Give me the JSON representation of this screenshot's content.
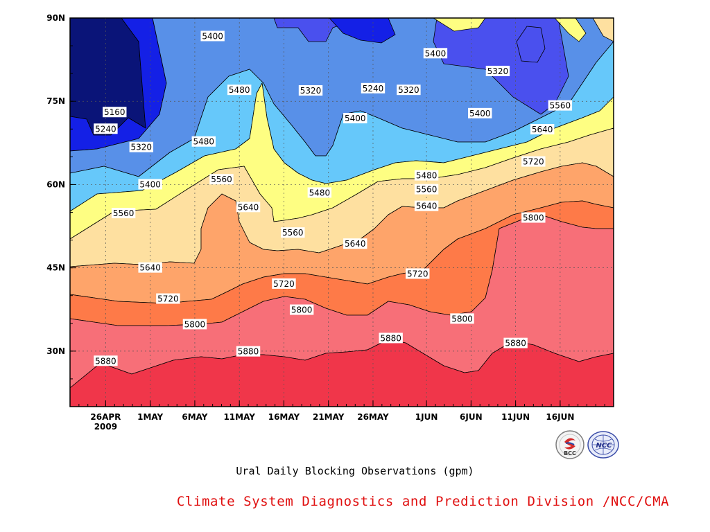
{
  "chart_data": {
    "type": "heatmap",
    "subtype": "filled-contour",
    "title": "",
    "caption": "Ural Daily Blocking Observations (gpm)",
    "credit": "Climate System Diagnostics and Prediction Division /NCC/CMA",
    "xlabel": "",
    "ylabel": "",
    "x_range": [
      "2009-04-22",
      "2009-06-22"
    ],
    "y_range": [
      20,
      90
    ],
    "x_ticks": [
      {
        "label": "26APR",
        "sublabel": "2009",
        "date": "2009-04-26"
      },
      {
        "label": "1MAY",
        "date": "2009-05-01"
      },
      {
        "label": "6MAY",
        "date": "2009-05-06"
      },
      {
        "label": "11MAY",
        "date": "2009-05-11"
      },
      {
        "label": "16MAY",
        "date": "2009-05-16"
      },
      {
        "label": "21MAY",
        "date": "2009-05-21"
      },
      {
        "label": "26MAY",
        "date": "2009-05-26"
      },
      {
        "label": "1JUN",
        "date": "2009-06-01"
      },
      {
        "label": "6JUN",
        "date": "2009-06-06"
      },
      {
        "label": "11JUN",
        "date": "2009-06-11"
      },
      {
        "label": "16JUN",
        "date": "2009-06-16"
      }
    ],
    "y_ticks": [
      {
        "label": "30N",
        "value": 30
      },
      {
        "label": "45N",
        "value": 45
      },
      {
        "label": "60N",
        "value": 60
      },
      {
        "label": "75N",
        "value": 75
      },
      {
        "label": "90N",
        "value": 90
      }
    ],
    "grid": true,
    "contour_levels": [
      5160,
      5240,
      5320,
      5400,
      5480,
      5560,
      5640,
      5720,
      5800,
      5880
    ],
    "fill_colors": [
      "#0a1478",
      "#1420e6",
      "#4a50ee",
      "#5890e8",
      "#66c8fa",
      "#fefe82",
      "#fee0a0",
      "#fea46a",
      "#fe7a48",
      "#f76f78",
      "#f0364a"
    ],
    "contour_labels": [
      {
        "text": "5160",
        "date": "2009-04-27",
        "lat": 73.0
      },
      {
        "text": "5240",
        "date": "2009-04-26",
        "lat": 70.0
      },
      {
        "text": "5320",
        "date": "2009-04-30",
        "lat": 66.7
      },
      {
        "text": "5400",
        "date": "2009-05-01",
        "lat": 60.0
      },
      {
        "text": "5560",
        "date": "2009-04-28",
        "lat": 54.8
      },
      {
        "text": "5640",
        "date": "2009-05-01",
        "lat": 45.0
      },
      {
        "text": "5720",
        "date": "2009-05-03",
        "lat": 39.4
      },
      {
        "text": "5800",
        "date": "2009-05-06",
        "lat": 34.8
      },
      {
        "text": "5880",
        "date": "2009-04-26",
        "lat": 28.2
      },
      {
        "text": "5400",
        "date": "2009-05-08",
        "lat": 86.7
      },
      {
        "text": "5480",
        "date": "2009-05-11",
        "lat": 77.0
      },
      {
        "text": "5480",
        "date": "2009-05-07",
        "lat": 67.7
      },
      {
        "text": "5560",
        "date": "2009-05-09",
        "lat": 60.9
      },
      {
        "text": "5640",
        "date": "2009-05-12",
        "lat": 55.9
      },
      {
        "text": "5720",
        "date": "2009-05-16",
        "lat": 42.1
      },
      {
        "text": "5880",
        "date": "2009-05-12",
        "lat": 29.9
      },
      {
        "text": "5320",
        "date": "2009-05-19",
        "lat": 76.9
      },
      {
        "text": "5240",
        "date": "2009-05-26",
        "lat": 77.3
      },
      {
        "text": "5320",
        "date": "2009-05-30",
        "lat": 77.0
      },
      {
        "text": "5400",
        "date": "2009-05-24",
        "lat": 71.9
      },
      {
        "text": "5480",
        "date": "2009-05-20",
        "lat": 58.5
      },
      {
        "text": "5560",
        "date": "2009-05-17",
        "lat": 51.3
      },
      {
        "text": "5640",
        "date": "2009-05-24",
        "lat": 49.3
      },
      {
        "text": "5800",
        "date": "2009-05-18",
        "lat": 37.4
      },
      {
        "text": "5880",
        "date": "2009-05-28",
        "lat": 32.3
      },
      {
        "text": "5400",
        "date": "2009-06-02",
        "lat": 83.6
      },
      {
        "text": "5480",
        "date": "2009-06-01",
        "lat": 61.6
      },
      {
        "text": "5560",
        "date": "2009-06-01",
        "lat": 59.1
      },
      {
        "text": "5640",
        "date": "2009-06-01",
        "lat": 56.1
      },
      {
        "text": "5720",
        "date": "2009-05-31",
        "lat": 43.9
      },
      {
        "text": "5800",
        "date": "2009-06-05",
        "lat": 35.8
      },
      {
        "text": "5320",
        "date": "2009-06-09",
        "lat": 80.4
      },
      {
        "text": "5400",
        "date": "2009-06-07",
        "lat": 72.8
      },
      {
        "text": "5560",
        "date": "2009-06-16",
        "lat": 74.2
      },
      {
        "text": "5640",
        "date": "2009-06-14",
        "lat": 69.9
      },
      {
        "text": "5720",
        "date": "2009-06-13",
        "lat": 64.1
      },
      {
        "text": "5800",
        "date": "2009-06-13",
        "lat": 54.0
      },
      {
        "text": "5880",
        "date": "2009-06-11",
        "lat": 31.4
      }
    ]
  },
  "logos": [
    {
      "name": "bcc-logo",
      "text": "BCC"
    },
    {
      "name": "ncc-logo",
      "text": "NCC"
    }
  ],
  "colors": {
    "credit": "#e01010",
    "contour_line": "#000000",
    "grid": "#555555"
  }
}
